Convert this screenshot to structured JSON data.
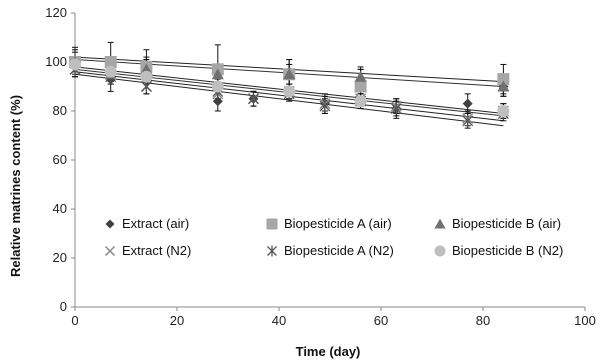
{
  "chart_data": {
    "type": "scatter",
    "title": "",
    "xlabel": "Time (day)",
    "ylabel": "Relative matrines content (%)",
    "xlim": [
      0,
      100
    ],
    "ylim": [
      0,
      120
    ],
    "xticks": [
      0,
      20,
      40,
      60,
      80,
      100
    ],
    "yticks": [
      0,
      20,
      40,
      60,
      80,
      100,
      120
    ],
    "grid": false,
    "legend_position": "inside-lower",
    "series": [
      {
        "name": "Extract (air)",
        "marker": "diamond",
        "color": "#404040",
        "x": [
          0,
          7,
          14,
          28,
          35,
          42,
          49,
          56,
          63,
          77,
          84
        ],
        "y": [
          100,
          93,
          97,
          84,
          85,
          96,
          83,
          92,
          81,
          83,
          90
        ],
        "err": [
          5,
          5,
          5,
          4,
          3,
          5,
          4,
          5,
          4,
          4,
          4
        ],
        "trend": [
          98,
          79
        ]
      },
      {
        "name": "Biopesticide A (air)",
        "marker": "square",
        "color": "#a6a6a6",
        "x": [
          0,
          7,
          14,
          28,
          42,
          56,
          84
        ],
        "y": [
          100,
          100,
          98,
          97,
          95,
          90,
          93
        ],
        "err": [
          6,
          8,
          7,
          10,
          6,
          7,
          6
        ],
        "trend": [
          101,
          90
        ]
      },
      {
        "name": "Biopesticide B (air)",
        "marker": "triangle",
        "color": "#707070",
        "x": [
          0,
          7,
          14,
          28,
          42,
          56,
          84
        ],
        "y": [
          100,
          95,
          97,
          95,
          95,
          94,
          90
        ],
        "err": [
          4,
          4,
          4,
          4,
          4,
          4,
          4
        ],
        "trend": [
          102,
          92
        ]
      },
      {
        "name": "Extract (N2)",
        "marker": "x",
        "color": "#888888",
        "x": [
          0,
          7,
          14,
          28,
          35,
          42,
          49,
          56,
          63,
          77,
          84
        ],
        "y": [
          97,
          95,
          90,
          87,
          85,
          88,
          83,
          85,
          82,
          77,
          80
        ],
        "err": [
          3,
          3,
          3,
          3,
          3,
          3,
          3,
          3,
          3,
          3,
          3
        ],
        "trend": [
          96,
          76
        ]
      },
      {
        "name": "Biopesticide A (N2)",
        "marker": "asterisk",
        "color": "#555555",
        "x": [
          0,
          7,
          14,
          28,
          35,
          42,
          49,
          56,
          63,
          77,
          84
        ],
        "y": [
          97,
          94,
          90,
          88,
          85,
          87,
          82,
          84,
          81,
          76,
          79
        ],
        "err": [
          3,
          3,
          3,
          3,
          3,
          3,
          3,
          3,
          3,
          3,
          3
        ],
        "trend": [
          95,
          74
        ]
      },
      {
        "name": "Biopesticide B (N2)",
        "marker": "circle",
        "color": "#bfbfbf",
        "x": [
          0,
          7,
          14,
          28,
          42,
          56,
          84
        ],
        "y": [
          99,
          96,
          94,
          90,
          88,
          84,
          80
        ],
        "err": [
          3,
          3,
          3,
          3,
          3,
          3,
          3
        ],
        "trend": [
          97,
          78
        ]
      }
    ]
  }
}
